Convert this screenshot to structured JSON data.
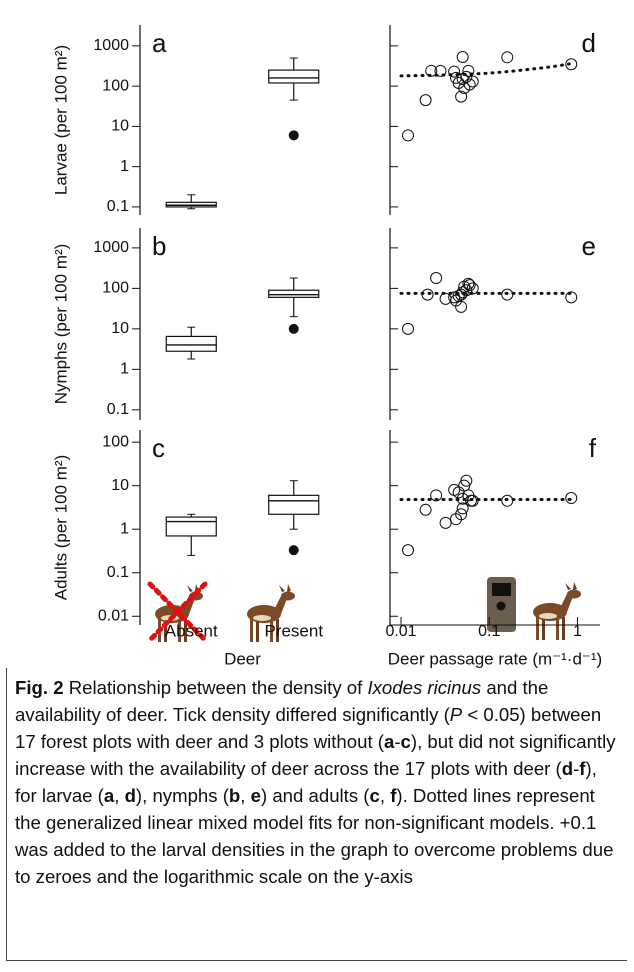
{
  "chart_data": [
    {
      "type": "box",
      "panel_label": "a",
      "y_label": "Larvae (per 100 m²)",
      "categories": [
        "Absent",
        "Present"
      ],
      "boxes": [
        {
          "whisker_low": 0.09,
          "q1": 0.1,
          "median": 0.11,
          "q3": 0.13,
          "whisker_high": 0.2,
          "outliers": []
        },
        {
          "whisker_low": 45,
          "q1": 120,
          "median": 160,
          "q3": 250,
          "whisker_high": 500,
          "outliers": [
            6
          ]
        }
      ],
      "ylim": [
        0.063,
        3300
      ],
      "yticks": [
        0.1,
        1,
        10,
        100,
        1000
      ],
      "log_y": true
    },
    {
      "type": "scatter",
      "panel_label": "d",
      "points": {
        "x": [
          0.012,
          0.019,
          0.022,
          0.028,
          0.04,
          0.042,
          0.045,
          0.048,
          0.05,
          0.05,
          0.052,
          0.055,
          0.058,
          0.06,
          0.065,
          0.16,
          0.85
        ],
        "y": [
          6,
          45,
          240,
          240,
          230,
          160,
          120,
          55,
          530,
          150,
          90,
          170,
          240,
          110,
          130,
          520,
          350
        ]
      },
      "fit": {
        "x": [
          0.01,
          0.02,
          0.05,
          0.1,
          0.2,
          0.5,
          0.9
        ],
        "y": [
          180,
          185,
          195,
          210,
          240,
          300,
          370
        ]
      },
      "xlim": [
        0.0075,
        1.8
      ],
      "ylim": [
        0.063,
        3300
      ],
      "log_x": true,
      "log_y": true
    },
    {
      "type": "box",
      "panel_label": "b",
      "y_label": "Nymphs (per 100 m²)",
      "categories": [
        "Absent",
        "Present"
      ],
      "boxes": [
        {
          "whisker_low": 1.8,
          "q1": 2.8,
          "median": 4,
          "q3": 6.5,
          "whisker_high": 11,
          "outliers": []
        },
        {
          "whisker_low": 20,
          "q1": 60,
          "median": 70,
          "q3": 90,
          "whisker_high": 180,
          "outliers": [
            10
          ]
        }
      ],
      "ylim": [
        0.056,
        3100
      ],
      "yticks": [
        0.1,
        1,
        10,
        100,
        1000
      ],
      "log_y": true
    },
    {
      "type": "scatter",
      "panel_label": "e",
      "points": {
        "x": [
          0.012,
          0.02,
          0.025,
          0.032,
          0.04,
          0.042,
          0.045,
          0.048,
          0.048,
          0.05,
          0.052,
          0.055,
          0.058,
          0.06,
          0.065,
          0.16,
          0.85
        ],
        "y": [
          10,
          70,
          180,
          55,
          60,
          50,
          65,
          70,
          35,
          80,
          110,
          90,
          130,
          120,
          100,
          70,
          60
        ]
      },
      "fit": {
        "x": [
          0.01,
          0.85
        ],
        "y": [
          75,
          75
        ]
      },
      "xlim": [
        0.0075,
        1.8
      ],
      "ylim": [
        0.056,
        3100
      ],
      "log_x": true,
      "log_y": true
    },
    {
      "type": "box",
      "panel_label": "c",
      "y_label": "Adults (per 100 m²)",
      "x_label": "Deer",
      "categories": [
        "Absent",
        "Present"
      ],
      "boxes": [
        {
          "whisker_low": 0.25,
          "q1": 0.7,
          "median": 1.5,
          "q3": 1.9,
          "whisker_high": 2.2,
          "outliers": []
        },
        {
          "whisker_low": 1,
          "q1": 2.2,
          "median": 4.5,
          "q3": 6,
          "whisker_high": 13,
          "outliers": [
            0.33
          ]
        }
      ],
      "ylim": [
        0.0063,
        190
      ],
      "yticks": [
        0.01,
        0.1,
        1,
        10,
        100
      ],
      "log_y": true
    },
    {
      "type": "scatter",
      "panel_label": "f",
      "x_label": "Deer passage rate (m⁻¹·d⁻¹)",
      "points": {
        "x": [
          0.012,
          0.019,
          0.025,
          0.032,
          0.04,
          0.042,
          0.045,
          0.048,
          0.05,
          0.05,
          0.052,
          0.055,
          0.058,
          0.062,
          0.065,
          0.16,
          0.85
        ],
        "y": [
          0.33,
          2.8,
          6,
          1.4,
          8,
          1.7,
          7,
          2.2,
          3,
          5,
          10,
          13,
          6,
          4.5,
          4.5,
          4.5,
          5.2
        ]
      },
      "fit": {
        "x": [
          0.01,
          0.85
        ],
        "y": [
          4.8,
          4.8
        ]
      },
      "xlim": [
        0.0075,
        1.8
      ],
      "xticks": [
        0.01,
        0.1,
        1
      ],
      "ylim": [
        0.0063,
        190
      ],
      "log_x": true,
      "log_y": true
    }
  ],
  "caption": {
    "runs": [
      "Fig. 2",
      " Relationship between the density of ",
      "Ixodes ricinus",
      " and the availability of deer. Tick density differed significantly (",
      "P",
      " < 0.05) between 17 forest plots with deer and 3 plots without (",
      "a",
      "-",
      "c",
      "), but did not significantly increase with the availability of deer across the 17 plots with deer (",
      "d",
      "-",
      "f",
      "), for larvae (",
      "a",
      ", ",
      "d",
      "), nymphs (",
      "b",
      ", ",
      "e",
      ") and adults (",
      "c",
      ", ",
      "f",
      "). Dotted lines represent the generalized linear mixed model fits for non-significant models. +0.1 was added to the larval densities in the graph to overcome problems due to zeroes and the logarithmic scale on the y-axis"
    ]
  }
}
